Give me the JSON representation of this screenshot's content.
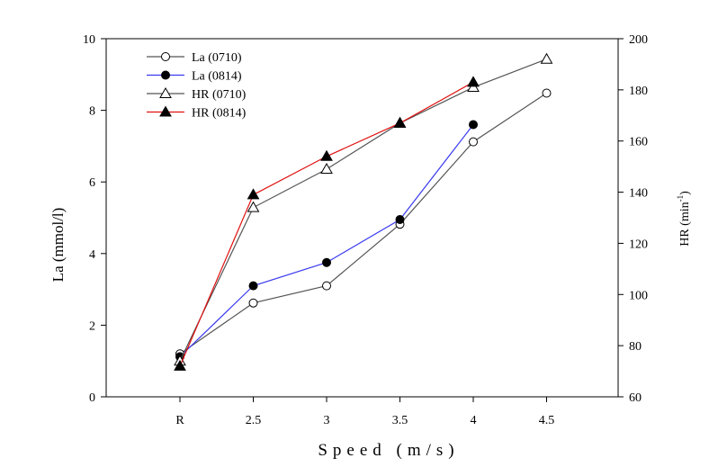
{
  "chart_data": {
    "type": "line",
    "categories": [
      "R",
      "2.5",
      "3",
      "3.5",
      "4",
      "4.5"
    ],
    "xlabel": "Speed (m/s)",
    "ylabel_left": "La (mmol/l)",
    "ylabel_right_base": "HR (min",
    "ylabel_right_sup": "-1",
    "ylabel_right_close": ")",
    "ylim_left": [
      0,
      10
    ],
    "yticks_left": [
      0,
      2,
      4,
      6,
      8,
      10
    ],
    "ylim_right": [
      60,
      200
    ],
    "yticks_right": [
      60,
      80,
      100,
      120,
      140,
      160,
      180,
      200
    ],
    "grid": false,
    "legend_position": "top-left",
    "series": [
      {
        "name": "La (0710)",
        "axis": "left",
        "marker": "open-circle",
        "color": "#555555",
        "values": [
          1.2,
          2.62,
          3.1,
          4.82,
          7.12,
          8.48
        ]
      },
      {
        "name": "La (0814)",
        "axis": "left",
        "marker": "filled-circle",
        "color": "#3a3af0",
        "values": [
          1.12,
          3.1,
          3.75,
          4.95,
          7.6,
          null
        ]
      },
      {
        "name": "HR (0710)",
        "axis": "right",
        "marker": "open-triangle",
        "color": "#555555",
        "values": [
          74,
          134,
          149,
          167,
          181,
          192
        ]
      },
      {
        "name": "HR (0814)",
        "axis": "right",
        "marker": "filled-triangle",
        "color": "#e01010",
        "values": [
          72,
          139,
          154,
          167,
          183,
          null
        ]
      }
    ]
  }
}
